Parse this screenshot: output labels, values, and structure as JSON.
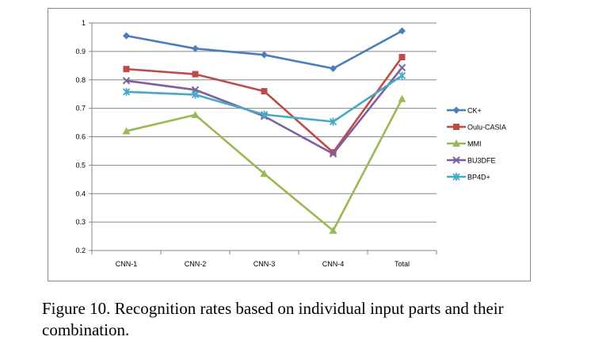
{
  "chart_data": {
    "type": "line",
    "categories": [
      "CNN-1",
      "CNN-2",
      "CNN-3",
      "CNN-4",
      "Total"
    ],
    "y_ticks": [
      "0.2",
      "0.3",
      "0.4",
      "0.5",
      "0.6",
      "0.7",
      "0.8",
      "0.9",
      "1"
    ],
    "ylim": [
      0.2,
      1.0
    ],
    "grid": true,
    "legend_position": "right",
    "series": [
      {
        "name": "CK+",
        "color": "#4a7ebb",
        "marker": "diamond",
        "values": [
          0.955,
          0.91,
          0.888,
          0.84,
          0.972
        ]
      },
      {
        "name": "Oulu-CASIA",
        "color": "#be4b48",
        "marker": "square",
        "values": [
          0.838,
          0.82,
          0.76,
          0.545,
          0.88
        ]
      },
      {
        "name": "MMI",
        "color": "#98b954",
        "marker": "triangle",
        "values": [
          0.62,
          0.677,
          0.47,
          0.27,
          0.733
        ]
      },
      {
        "name": "BU3DFE",
        "color": "#7d60a0",
        "marker": "x",
        "values": [
          0.797,
          0.765,
          0.672,
          0.54,
          0.843
        ]
      },
      {
        "name": "BP4D+",
        "color": "#46aac5",
        "marker": "asterisk",
        "values": [
          0.758,
          0.748,
          0.678,
          0.653,
          0.815
        ]
      }
    ]
  },
  "caption": "Figure 10. Recognition rates based on individual input parts and their combination."
}
